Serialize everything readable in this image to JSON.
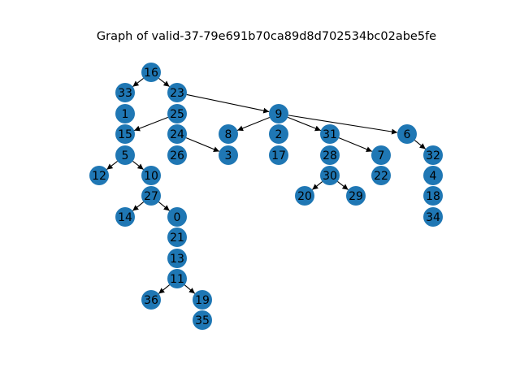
{
  "title": "Graph of valid-37-79e691b70ca89d8d702534bc02abe5fe",
  "colors": {
    "node": "#1f77b4",
    "edge": "#000000",
    "label": "#000000",
    "background": "#ffffff"
  },
  "nodes": [
    "16",
    "33",
    "23",
    "1",
    "25",
    "9",
    "15",
    "24",
    "8",
    "2",
    "31",
    "6",
    "5",
    "26",
    "3",
    "17",
    "28",
    "7",
    "32",
    "12",
    "10",
    "30",
    "22",
    "4",
    "27",
    "20",
    "29",
    "18",
    "14",
    "0",
    "34",
    "21",
    "13",
    "11",
    "36",
    "19",
    "35"
  ],
  "edges": [
    [
      "16",
      "33"
    ],
    [
      "16",
      "23"
    ],
    [
      "23",
      "9"
    ],
    [
      "25",
      "15"
    ],
    [
      "5",
      "12"
    ],
    [
      "5",
      "10"
    ],
    [
      "27",
      "14"
    ],
    [
      "27",
      "0"
    ],
    [
      "11",
      "36"
    ],
    [
      "11",
      "19"
    ],
    [
      "24",
      "3"
    ],
    [
      "9",
      "8"
    ],
    [
      "9",
      "31"
    ],
    [
      "9",
      "6"
    ],
    [
      "31",
      "7"
    ],
    [
      "6",
      "32"
    ],
    [
      "30",
      "20"
    ],
    [
      "30",
      "29"
    ]
  ]
}
